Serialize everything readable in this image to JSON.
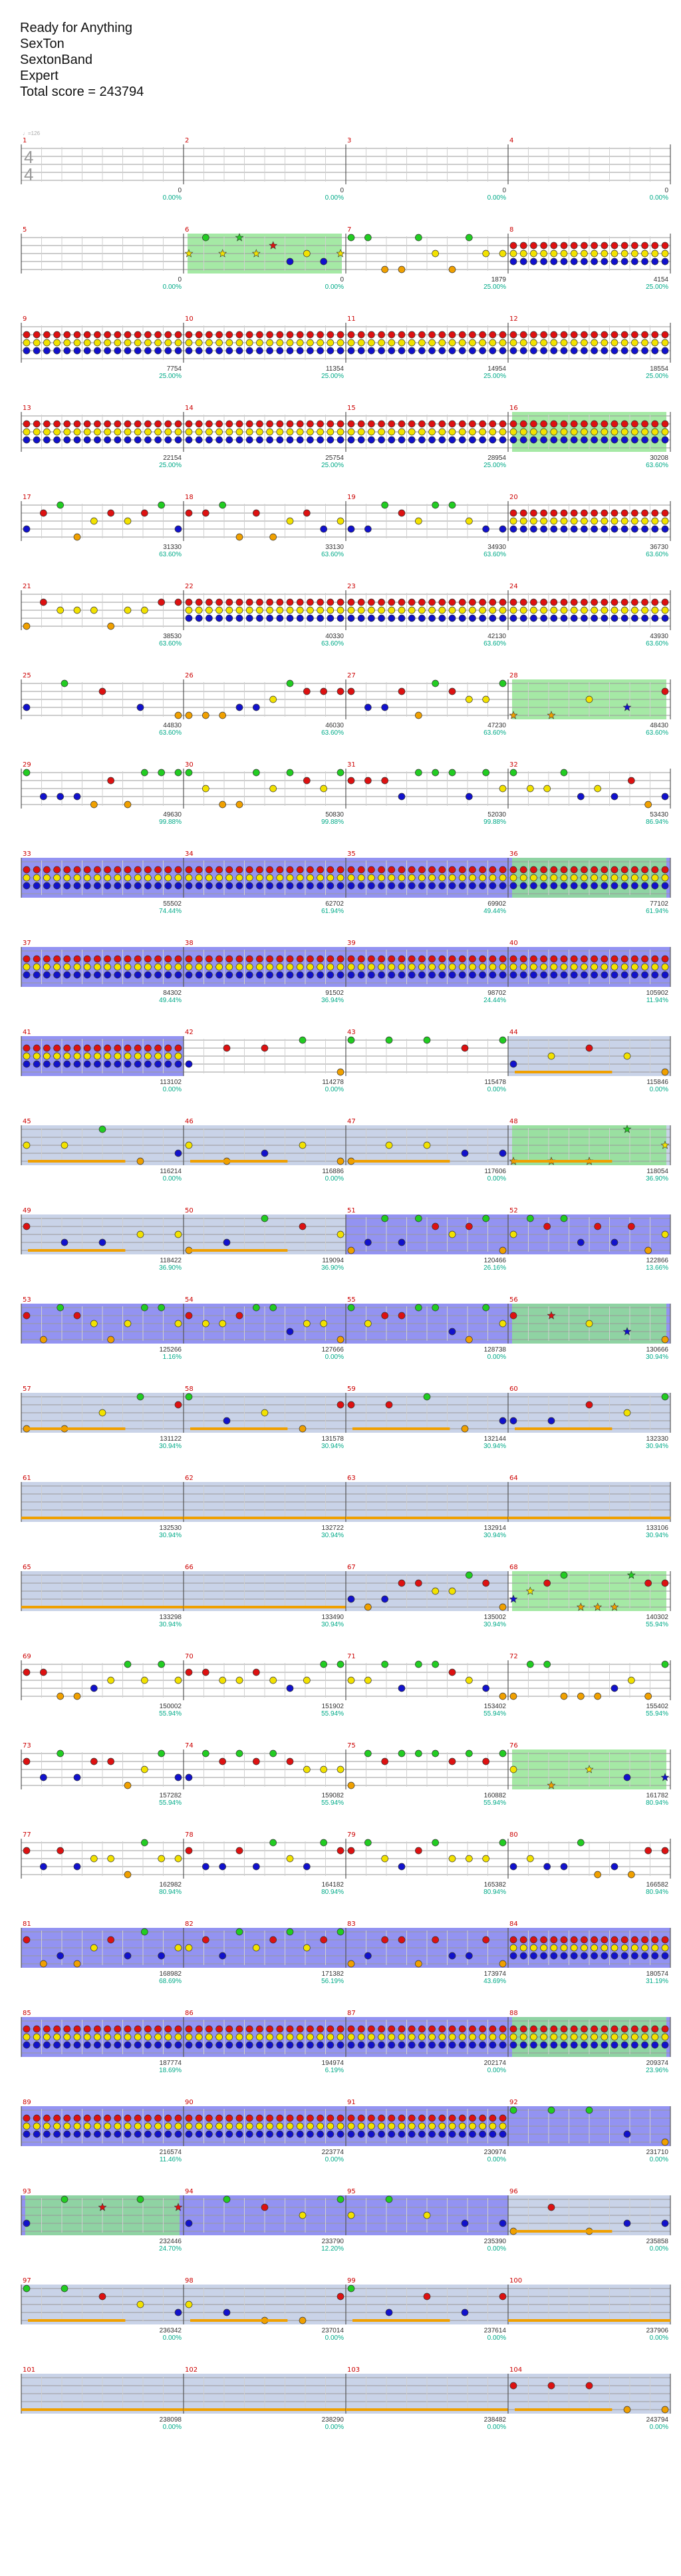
{
  "header": {
    "song": "Ready for Anything",
    "artist": "SexTon",
    "charter": "SextonBand",
    "difficulty": "Expert",
    "total_score": "Total score = 243794"
  },
  "tempo": "♩=126",
  "time_signature": {
    "top": "4",
    "bottom": "4"
  },
  "colors": {
    "green": "#22cc22",
    "red": "#dd1111",
    "yellow": "#f2e200",
    "blue": "#1111cc",
    "orange": "#f0a000",
    "starpower": "#8fe38f",
    "solo": "#8080f0",
    "overdrive_band": "#c9d3e8",
    "sustain_green": "#33dd33",
    "number": "#00aa88",
    "measure_num": "#cc0000"
  },
  "measures": [
    {
      "n": 1,
      "score": "0",
      "pct": "0.00%",
      "dense": 0
    },
    {
      "n": 2,
      "score": "0",
      "pct": "0.00%",
      "dense": 0
    },
    {
      "n": 3,
      "score": "0",
      "pct": "0.00%",
      "dense": 0
    },
    {
      "n": 4,
      "score": "0",
      "pct": "0.00%",
      "dense": 0
    },
    {
      "n": 5,
      "score": "0",
      "pct": "0.00%",
      "dense": 0
    },
    {
      "n": 6,
      "score": "0",
      "pct": "0.00%",
      "dense": 2,
      "star": 1
    },
    {
      "n": 7,
      "score": "1879",
      "pct": "25.00%",
      "dense": 2
    },
    {
      "n": 8,
      "score": "4154",
      "pct": "25.00%",
      "dense": 3
    },
    {
      "n": 9,
      "score": "7754",
      "pct": "25.00%",
      "dense": 3
    },
    {
      "n": 10,
      "score": "11354",
      "pct": "25.00%",
      "dense": 3
    },
    {
      "n": 11,
      "score": "14954",
      "pct": "25.00%",
      "dense": 3
    },
    {
      "n": 12,
      "score": "18554",
      "pct": "25.00%",
      "dense": 3
    },
    {
      "n": 13,
      "score": "22154",
      "pct": "25.00%",
      "dense": 3
    },
    {
      "n": 14,
      "score": "25754",
      "pct": "25.00%",
      "dense": 3
    },
    {
      "n": 15,
      "score": "28954",
      "pct": "25.00%",
      "dense": 3
    },
    {
      "n": 16,
      "score": "30208",
      "pct": "63.60%",
      "dense": 3,
      "star": 1
    },
    {
      "n": 17,
      "score": "31330",
      "pct": "63.60%",
      "dense": 2
    },
    {
      "n": 18,
      "score": "33130",
      "pct": "63.60%",
      "dense": 2
    },
    {
      "n": 19,
      "score": "34930",
      "pct": "63.60%",
      "dense": 2
    },
    {
      "n": 20,
      "score": "36730",
      "pct": "63.60%",
      "dense": 3
    },
    {
      "n": 21,
      "score": "38530",
      "pct": "63.60%",
      "dense": 2
    },
    {
      "n": 22,
      "score": "40330",
      "pct": "63.60%",
      "dense": 3
    },
    {
      "n": 23,
      "score": "42130",
      "pct": "63.60%",
      "dense": 3
    },
    {
      "n": 24,
      "score": "43930",
      "pct": "63.60%",
      "dense": 3
    },
    {
      "n": 25,
      "score": "44830",
      "pct": "63.60%",
      "dense": 1
    },
    {
      "n": 26,
      "score": "46030",
      "pct": "63.60%",
      "dense": 2
    },
    {
      "n": 27,
      "score": "47230",
      "pct": "63.60%",
      "dense": 2
    },
    {
      "n": 28,
      "score": "48430",
      "pct": "63.60%",
      "dense": 1,
      "star": 1
    },
    {
      "n": 29,
      "score": "49630",
      "pct": "99.88%",
      "dense": 2
    },
    {
      "n": 30,
      "score": "50830",
      "pct": "99.88%",
      "dense": 2
    },
    {
      "n": 31,
      "score": "52030",
      "pct": "99.88%",
      "dense": 2
    },
    {
      "n": 32,
      "score": "53430",
      "pct": "86.94%",
      "dense": 2
    },
    {
      "n": 33,
      "score": "55502",
      "pct": "74.44%",
      "dense": 3,
      "solo": 1
    },
    {
      "n": 34,
      "score": "62702",
      "pct": "61.94%",
      "dense": 3,
      "solo": 1
    },
    {
      "n": 35,
      "score": "69902",
      "pct": "49.44%",
      "dense": 3,
      "solo": 1
    },
    {
      "n": 36,
      "score": "77102",
      "pct": "61.94%",
      "dense": 3,
      "solo": 1,
      "star": 1
    },
    {
      "n": 37,
      "score": "84302",
      "pct": "49.44%",
      "dense": 3,
      "solo": 1
    },
    {
      "n": 38,
      "score": "91502",
      "pct": "36.94%",
      "dense": 3,
      "solo": 1
    },
    {
      "n": 39,
      "score": "98702",
      "pct": "24.44%",
      "dense": 3,
      "solo": 1
    },
    {
      "n": 40,
      "score": "105902",
      "pct": "11.94%",
      "dense": 3,
      "solo": 1
    },
    {
      "n": 41,
      "score": "113102",
      "pct": "0.00%",
      "dense": 3,
      "solo": 1
    },
    {
      "n": 42,
      "score": "114278",
      "pct": "0.00%",
      "dense": 1
    },
    {
      "n": 43,
      "score": "115478",
      "pct": "0.00%",
      "dense": 1
    },
    {
      "n": 44,
      "score": "115846",
      "pct": "0.00%",
      "dense": 1,
      "band": 1
    },
    {
      "n": 45,
      "score": "116214",
      "pct": "0.00%",
      "dense": 1,
      "band": 1
    },
    {
      "n": 46,
      "score": "116886",
      "pct": "0.00%",
      "dense": 1,
      "band": 1
    },
    {
      "n": 47,
      "score": "117606",
      "pct": "0.00%",
      "dense": 1,
      "band": 1
    },
    {
      "n": 48,
      "score": "118054",
      "pct": "36.90%",
      "dense": 1,
      "band": 1,
      "star": 1
    },
    {
      "n": 49,
      "score": "118422",
      "pct": "36.90%",
      "dense": 1,
      "band": 1
    },
    {
      "n": 50,
      "score": "119094",
      "pct": "36.90%",
      "dense": 1,
      "band": 1
    },
    {
      "n": 51,
      "score": "120466",
      "pct": "26.16%",
      "dense": 2,
      "solo": 1
    },
    {
      "n": 52,
      "score": "122866",
      "pct": "13.66%",
      "dense": 2,
      "solo": 1
    },
    {
      "n": 53,
      "score": "125266",
      "pct": "1.16%",
      "dense": 2,
      "solo": 1
    },
    {
      "n": 54,
      "score": "127666",
      "pct": "0.00%",
      "dense": 2,
      "solo": 1
    },
    {
      "n": 55,
      "score": "128738",
      "pct": "0.00%",
      "dense": 2,
      "solo": 1
    },
    {
      "n": 56,
      "score": "130666",
      "pct": "30.94%",
      "dense": 1,
      "solo": 1,
      "star": 1
    },
    {
      "n": 57,
      "score": "131122",
      "pct": "30.94%",
      "dense": 1,
      "band": 1
    },
    {
      "n": 58,
      "score": "131578",
      "pct": "30.94%",
      "dense": 1,
      "band": 1
    },
    {
      "n": 59,
      "score": "132144",
      "pct": "30.94%",
      "dense": 1,
      "band": 1
    },
    {
      "n": 60,
      "score": "132330",
      "pct": "30.94%",
      "dense": 1,
      "band": 1
    },
    {
      "n": 61,
      "score": "132530",
      "pct": "30.94%",
      "dense": 0,
      "band": 1
    },
    {
      "n": 62,
      "score": "132722",
      "pct": "30.94%",
      "dense": 0,
      "band": 1
    },
    {
      "n": 63,
      "score": "132914",
      "pct": "30.94%",
      "dense": 0,
      "band": 1
    },
    {
      "n": 64,
      "score": "133106",
      "pct": "30.94%",
      "dense": 0,
      "band": 1
    },
    {
      "n": 65,
      "score": "133298",
      "pct": "30.94%",
      "dense": 0,
      "band": 1
    },
    {
      "n": 66,
      "score": "133490",
      "pct": "30.94%",
      "dense": 0,
      "band": 1
    },
    {
      "n": 67,
      "score": "135002",
      "pct": "30.94%",
      "dense": 2,
      "band": 1
    },
    {
      "n": 68,
      "score": "140302",
      "pct": "55.94%",
      "dense": 2,
      "star": 1
    },
    {
      "n": 69,
      "score": "150002",
      "pct": "55.94%",
      "dense": 2
    },
    {
      "n": 70,
      "score": "151902",
      "pct": "55.94%",
      "dense": 2
    },
    {
      "n": 71,
      "score": "153402",
      "pct": "55.94%",
      "dense": 2
    },
    {
      "n": 72,
      "score": "155402",
      "pct": "55.94%",
      "dense": 2
    },
    {
      "n": 73,
      "score": "157282",
      "pct": "55.94%",
      "dense": 2
    },
    {
      "n": 74,
      "score": "159082",
      "pct": "55.94%",
      "dense": 2
    },
    {
      "n": 75,
      "score": "160882",
      "pct": "55.94%",
      "dense": 2
    },
    {
      "n": 76,
      "score": "161782",
      "pct": "80.94%",
      "dense": 1,
      "star": 1
    },
    {
      "n": 77,
      "score": "162982",
      "pct": "80.94%",
      "dense": 2
    },
    {
      "n": 78,
      "score": "164182",
      "pct": "80.94%",
      "dense": 2
    },
    {
      "n": 79,
      "score": "165382",
      "pct": "80.94%",
      "dense": 2
    },
    {
      "n": 80,
      "score": "166582",
      "pct": "80.94%",
      "dense": 2
    },
    {
      "n": 81,
      "score": "168982",
      "pct": "68.69%",
      "dense": 2,
      "solo": 1
    },
    {
      "n": 82,
      "score": "171382",
      "pct": "56.19%",
      "dense": 2,
      "solo": 1
    },
    {
      "n": 83,
      "score": "173974",
      "pct": "43.69%",
      "dense": 2,
      "solo": 1
    },
    {
      "n": 84,
      "score": "180574",
      "pct": "31.19%",
      "dense": 3,
      "solo": 1
    },
    {
      "n": 85,
      "score": "187774",
      "pct": "18.69%",
      "dense": 3,
      "solo": 1
    },
    {
      "n": 86,
      "score": "194974",
      "pct": "6.19%",
      "dense": 3,
      "solo": 1
    },
    {
      "n": 87,
      "score": "202174",
      "pct": "0.00%",
      "dense": 3,
      "solo": 1
    },
    {
      "n": 88,
      "score": "209374",
      "pct": "23.96%",
      "dense": 3,
      "solo": 1,
      "star": 1
    },
    {
      "n": 89,
      "score": "216574",
      "pct": "11.46%",
      "dense": 3,
      "solo": 1
    },
    {
      "n": 90,
      "score": "223774",
      "pct": "0.00%",
      "dense": 3,
      "solo": 1
    },
    {
      "n": 91,
      "score": "230974",
      "pct": "0.00%",
      "dense": 3,
      "solo": 1
    },
    {
      "n": 92,
      "score": "231710",
      "pct": "0.00%",
      "dense": 1,
      "solo": 1
    },
    {
      "n": 93,
      "score": "232446",
      "pct": "24.70%",
      "dense": 1,
      "solo": 1,
      "star": 1
    },
    {
      "n": 94,
      "score": "233790",
      "pct": "12.20%",
      "dense": 1,
      "solo": 1
    },
    {
      "n": 95,
      "score": "235390",
      "pct": "0.00%",
      "dense": 1,
      "solo": 1
    },
    {
      "n": 96,
      "score": "235858",
      "pct": "0.00%",
      "dense": 1,
      "band": 1
    },
    {
      "n": 97,
      "score": "236342",
      "pct": "0.00%",
      "dense": 1,
      "band": 1
    },
    {
      "n": 98,
      "score": "237014",
      "pct": "0.00%",
      "dense": 1,
      "band": 1
    },
    {
      "n": 99,
      "score": "237614",
      "pct": "0.00%",
      "dense": 1,
      "band": 1
    },
    {
      "n": 100,
      "score": "237906",
      "pct": "0.00%",
      "dense": 0,
      "band": 1
    },
    {
      "n": 101,
      "score": "238098",
      "pct": "0.00%",
      "dense": 0,
      "band": 1
    },
    {
      "n": 102,
      "score": "238290",
      "pct": "0.00%",
      "dense": 0,
      "band": 1
    },
    {
      "n": 103,
      "score": "238482",
      "pct": "0.00%",
      "dense": 0,
      "band": 1
    },
    {
      "n": 104,
      "score": "243794",
      "pct": "0.00%",
      "dense": 1,
      "band": 1
    }
  ]
}
